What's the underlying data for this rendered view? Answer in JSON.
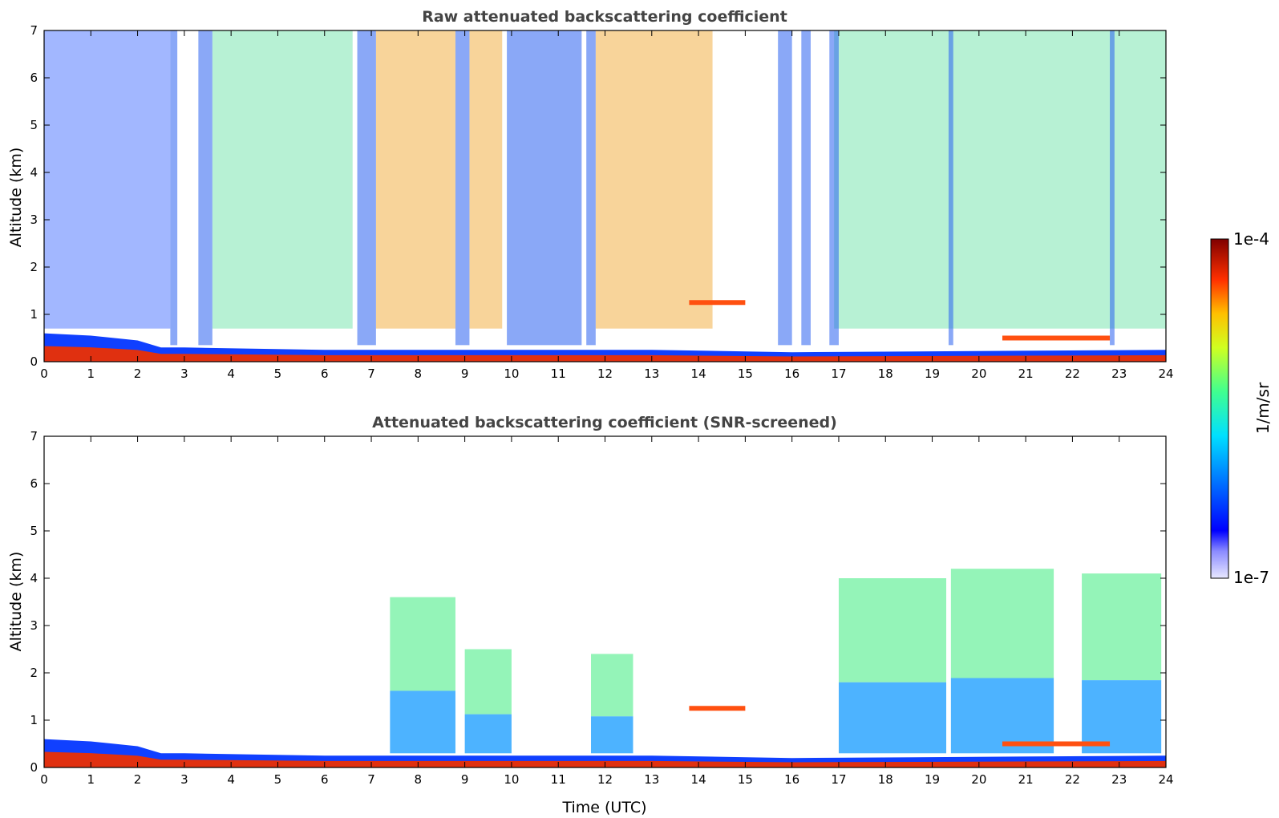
{
  "chart_data": [
    {
      "type": "heatmap",
      "title": "Raw attenuated backscattering coefficient",
      "xlabel": "",
      "ylabel": "Altitude (km)",
      "xlim": [
        0,
        24
      ],
      "ylim": [
        0,
        7
      ],
      "x_ticks": [
        "0",
        "1",
        "2",
        "3",
        "4",
        "5",
        "6",
        "7",
        "8",
        "9",
        "10",
        "11",
        "12",
        "13",
        "14",
        "15",
        "16",
        "17",
        "18",
        "19",
        "20",
        "21",
        "22",
        "23",
        "24"
      ],
      "y_ticks": [
        "0",
        "1",
        "2",
        "3",
        "4",
        "5",
        "6",
        "7"
      ],
      "colorscale": "jet, logarithmic",
      "surface_layer_top_km": [
        {
          "x": 0,
          "y": 0.6
        },
        {
          "x": 1,
          "y": 0.55
        },
        {
          "x": 2,
          "y": 0.45
        },
        {
          "x": 2.5,
          "y": 0.3
        },
        {
          "x": 3,
          "y": 0.3
        },
        {
          "x": 6,
          "y": 0.25
        },
        {
          "x": 13,
          "y": 0.25
        },
        {
          "x": 16,
          "y": 0.2
        },
        {
          "x": 24,
          "y": 0.25
        }
      ],
      "background_signal": [
        {
          "x_range": [
            0,
            2.7
          ],
          "level": "low"
        },
        {
          "x_range": [
            3.6,
            6.6
          ],
          "level": "medium"
        },
        {
          "x_range": [
            7.1,
            8.8
          ],
          "level": "high"
        },
        {
          "x_range": [
            9.1,
            9.8
          ],
          "level": "high"
        },
        {
          "x_range": [
            11.8,
            14.3
          ],
          "level": "high"
        },
        {
          "x_range": [
            16.9,
            24
          ],
          "level": "medium"
        }
      ],
      "low_signal_columns": [
        {
          "x_range": [
            2.7,
            2.85
          ]
        },
        {
          "x_range": [
            3.3,
            3.6
          ]
        },
        {
          "x_range": [
            6.7,
            7.1
          ]
        },
        {
          "x_range": [
            8.8,
            9.1
          ]
        },
        {
          "x_range": [
            9.9,
            11.5
          ]
        },
        {
          "x_range": [
            11.6,
            11.8
          ]
        },
        {
          "x_range": [
            15.7,
            16.0
          ]
        },
        {
          "x_range": [
            16.2,
            16.4
          ]
        },
        {
          "x_range": [
            16.8,
            17.0
          ]
        },
        {
          "x_range": [
            19.35,
            19.45
          ]
        },
        {
          "x_range": [
            22.8,
            22.9
          ]
        }
      ],
      "features": [
        {
          "kind": "elevated_layer",
          "x_range": [
            13.8,
            15.0
          ],
          "altitude_km": 1.25,
          "level": "high"
        },
        {
          "kind": "elevated_layer",
          "x_range": [
            20.5,
            22.8
          ],
          "altitude_km": 0.5,
          "level": "high"
        }
      ]
    },
    {
      "type": "heatmap",
      "title": "Attenuated backscattering coefficient (SNR-screened)",
      "xlabel": "Time (UTC)",
      "ylabel": "Altitude (km)",
      "xlim": [
        0,
        24
      ],
      "ylim": [
        0,
        7
      ],
      "x_ticks": [
        "0",
        "1",
        "2",
        "3",
        "4",
        "5",
        "6",
        "7",
        "8",
        "9",
        "10",
        "11",
        "12",
        "13",
        "14",
        "15",
        "16",
        "17",
        "18",
        "19",
        "20",
        "21",
        "22",
        "23",
        "24"
      ],
      "y_ticks": [
        "0",
        "1",
        "2",
        "3",
        "4",
        "5",
        "6",
        "7"
      ],
      "colorscale": "jet, logarithmic",
      "surface_layer_top_km": [
        {
          "x": 0,
          "y": 0.6
        },
        {
          "x": 1,
          "y": 0.55
        },
        {
          "x": 2,
          "y": 0.45
        },
        {
          "x": 2.5,
          "y": 0.3
        },
        {
          "x": 3,
          "y": 0.3
        },
        {
          "x": 6,
          "y": 0.25
        },
        {
          "x": 13,
          "y": 0.25
        },
        {
          "x": 16,
          "y": 0.2
        },
        {
          "x": 24,
          "y": 0.25
        }
      ],
      "aerosol_plumes": [
        {
          "x_range": [
            7.4,
            8.8
          ],
          "top_km": 3.6
        },
        {
          "x_range": [
            9.0,
            10.0
          ],
          "top_km": 2.5
        },
        {
          "x_range": [
            11.7,
            12.6
          ],
          "top_km": 2.4
        },
        {
          "x_range": [
            17.0,
            19.3
          ],
          "top_km": 4.0
        },
        {
          "x_range": [
            19.4,
            21.6
          ],
          "top_km": 4.2
        },
        {
          "x_range": [
            22.2,
            23.9
          ],
          "top_km": 4.1
        }
      ],
      "features": [
        {
          "kind": "elevated_layer",
          "x_range": [
            13.8,
            15.0
          ],
          "altitude_km": 1.25,
          "level": "high"
        },
        {
          "kind": "elevated_layer",
          "x_range": [
            20.5,
            22.8
          ],
          "altitude_km": 0.5,
          "level": "high"
        }
      ]
    }
  ],
  "colorbar": {
    "label": "1/m/sr",
    "max_label": "1e-4",
    "min_label": "1e-7"
  }
}
